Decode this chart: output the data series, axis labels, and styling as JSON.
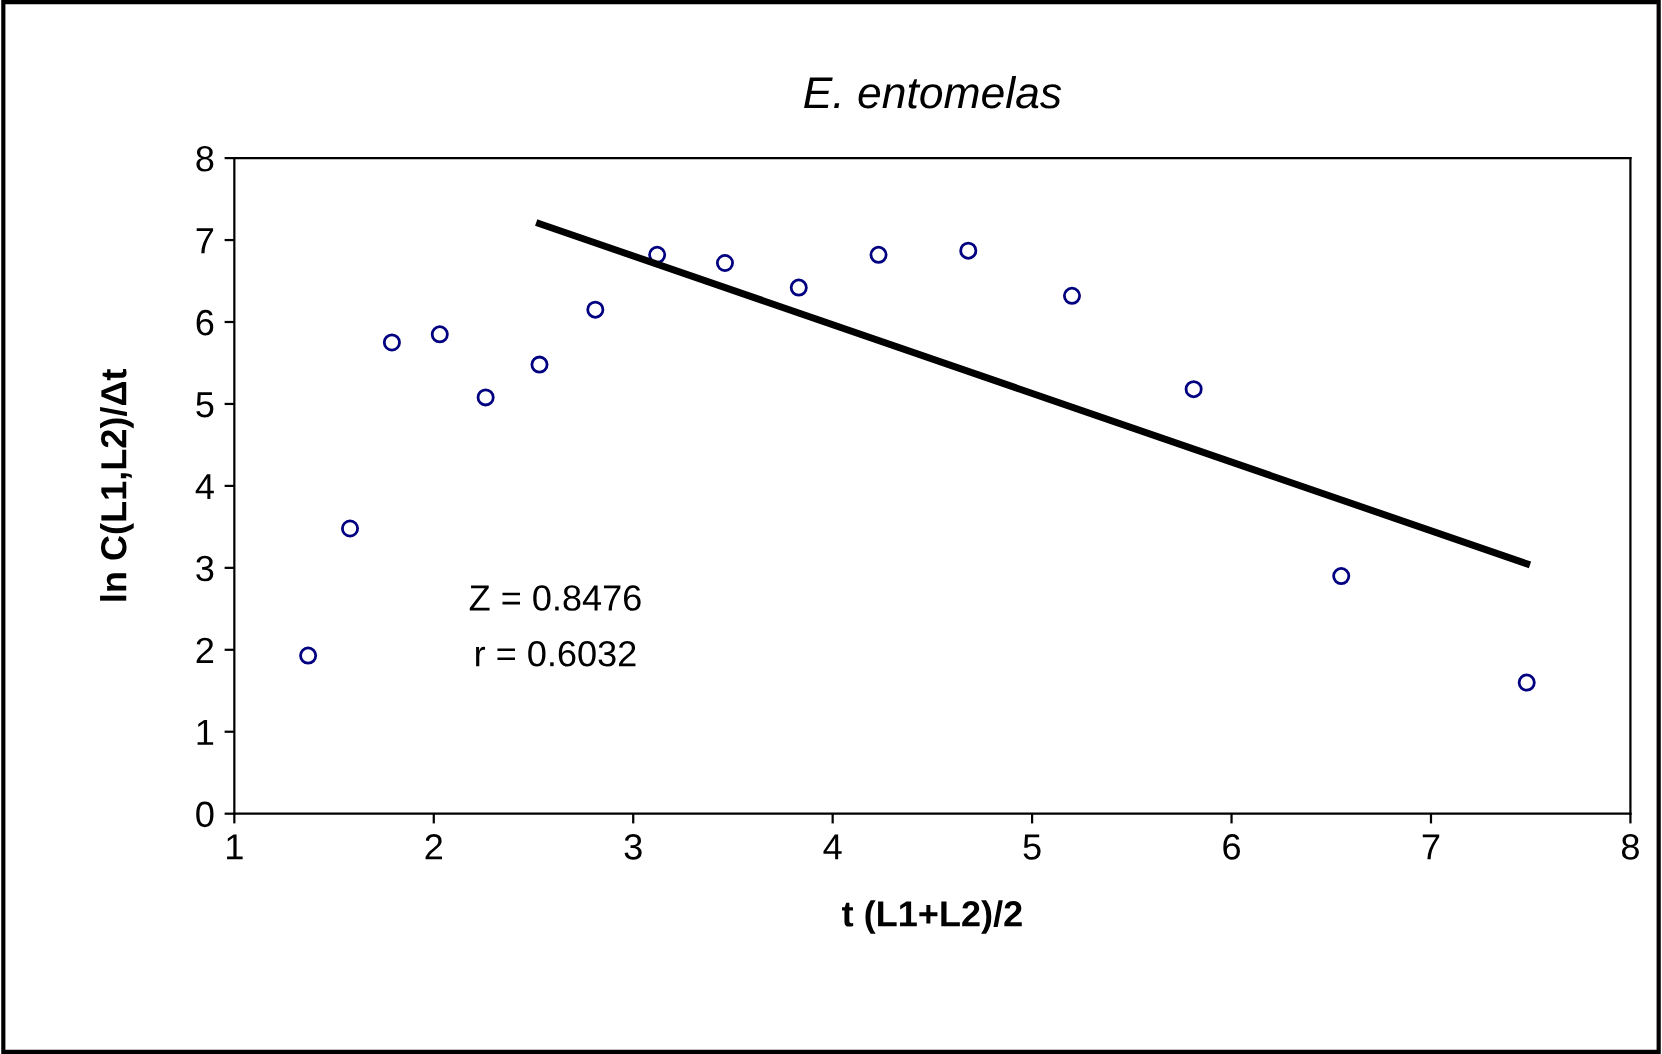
{
  "chart_data": {
    "type": "scatter",
    "title": "E. entomelas",
    "xlabel": "t (L1+L2)/2",
    "ylabel": "ln C(L1,L2)/Δt",
    "annotations": [
      "Z = 0.8476",
      "r = 0.6032"
    ],
    "xlim": [
      1,
      8
    ],
    "ylim": [
      0,
      8
    ],
    "xticks": [
      1,
      2,
      3,
      4,
      5,
      6,
      7,
      8
    ],
    "yticks": [
      0,
      1,
      2,
      3,
      4,
      5,
      6,
      7,
      8
    ],
    "grid": false,
    "legend": false,
    "series": [
      {
        "marker": "circle",
        "color": "#000080",
        "x": [
          1.37,
          1.58,
          1.79,
          2.03,
          2.26,
          2.53,
          2.81,
          3.12,
          3.46,
          3.83,
          4.23,
          4.68,
          5.2,
          5.81,
          6.55,
          7.48
        ],
        "values": [
          1.93,
          3.48,
          5.75,
          5.85,
          5.08,
          5.48,
          6.15,
          6.82,
          6.72,
          6.42,
          6.82,
          6.87,
          6.32,
          5.18,
          2.9,
          1.6
        ]
      },
      {
        "type": "line",
        "marker": "none",
        "color": "#000000",
        "x": [
          2.53,
          7.48
        ],
        "values": [
          7.2,
          3.05
        ]
      }
    ]
  }
}
